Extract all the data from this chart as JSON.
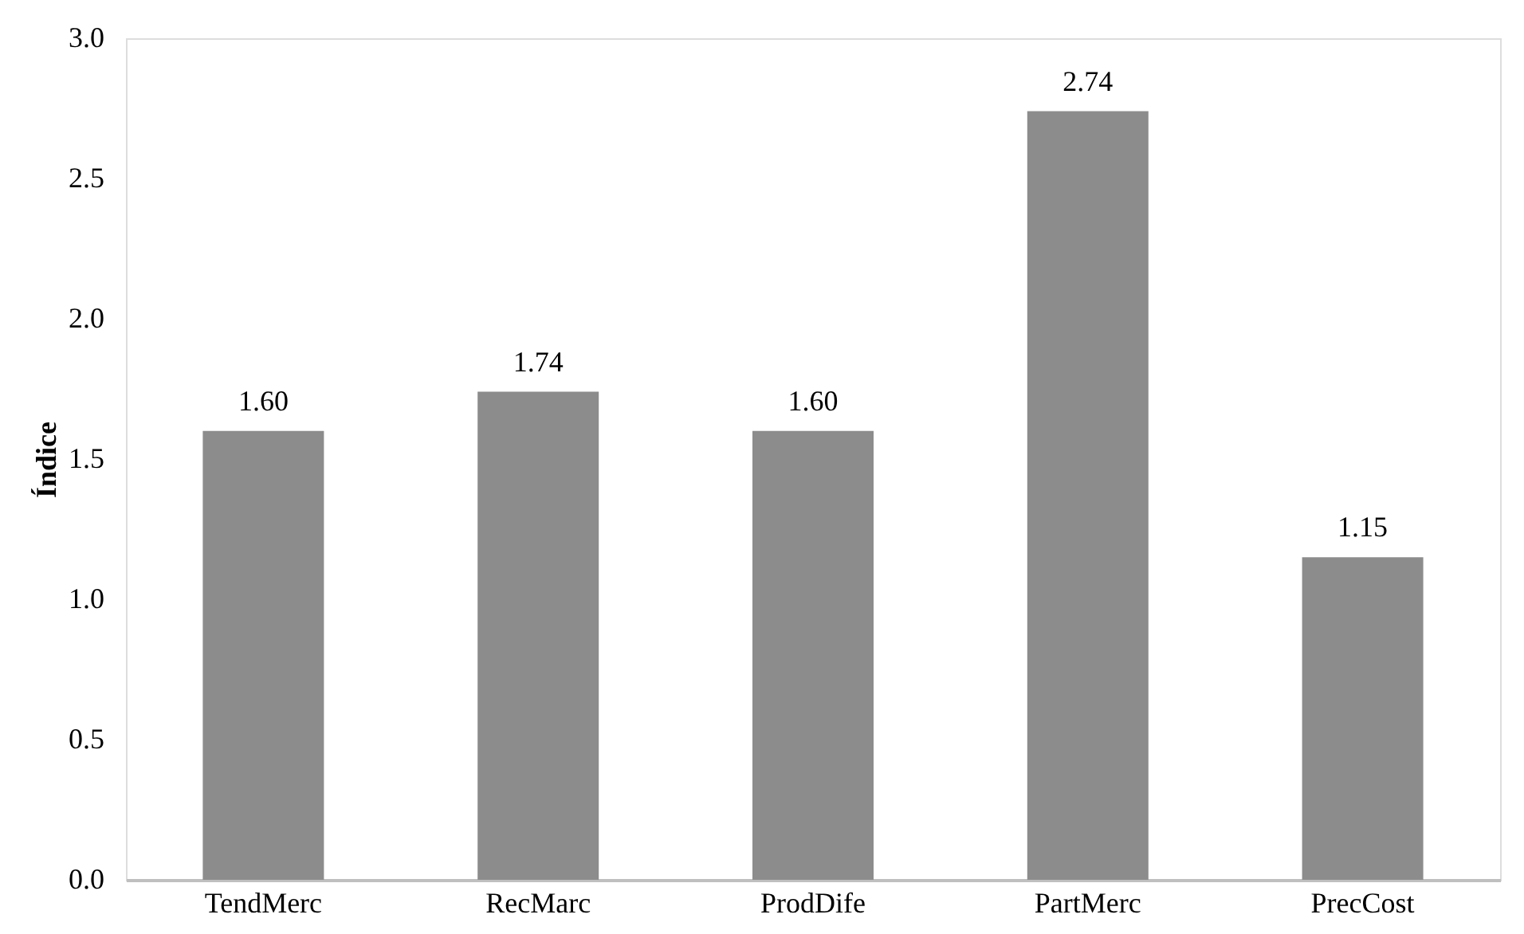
{
  "chart_data": {
    "type": "bar",
    "ylabel": "Índice",
    "categories": [
      "TendMerc",
      "RecMarc",
      "ProdDife",
      "PartMerc",
      "PrecCost"
    ],
    "values": [
      1.6,
      1.74,
      1.6,
      2.74,
      1.15
    ],
    "value_labels": [
      "1.60",
      "1.74",
      "1.60",
      "2.74",
      "1.15"
    ],
    "color": "#8c8c8c",
    "ylim": [
      0,
      3.0
    ],
    "yticks": [
      {
        "value": 0,
        "label": "0.0"
      },
      {
        "value": 0.5,
        "label": "0.5"
      },
      {
        "value": 1,
        "label": "1.0"
      },
      {
        "value": 1.5,
        "label": "1.5"
      },
      {
        "value": 2,
        "label": "2.0"
      },
      {
        "value": 2.5,
        "label": "2.5"
      },
      {
        "value": 3,
        "label": "3.0"
      }
    ],
    "grid": false
  }
}
